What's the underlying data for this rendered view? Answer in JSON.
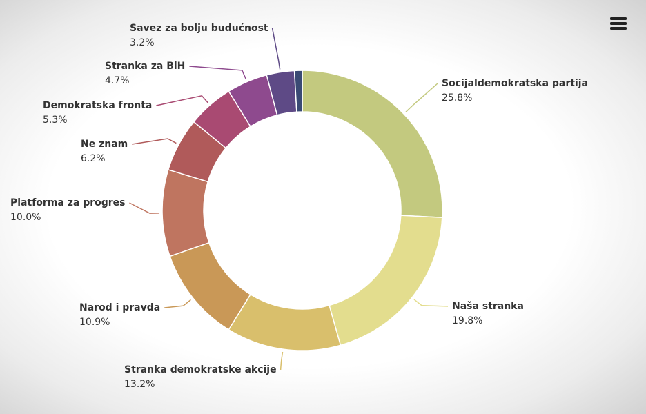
{
  "chart_data": {
    "type": "donut",
    "categories": [
      "Socijaldemokratska partija",
      "Naša stranka",
      "Stranka demokratske akcije",
      "Narod i pravda",
      "Platforma za progres",
      "Ne znam",
      "Demokratska fronta",
      "Stranka za BiH",
      "Savez za bolju budućnost",
      null
    ],
    "values": [
      25.8,
      19.8,
      13.2,
      10.9,
      10.0,
      6.2,
      5.3,
      4.7,
      3.2,
      0.9
    ],
    "value_labels": [
      "25.8%",
      "19.8%",
      "13.2%",
      "10.9%",
      "10.0%",
      "6.2%",
      "5.3%",
      "4.7%",
      "3.2%",
      null
    ],
    "colors": [
      "#c3c97f",
      "#e3dd8e",
      "#d9bf6c",
      "#c99857",
      "#bf7560",
      "#b05a5a",
      "#a94a72",
      "#8e4a8e",
      "#5e4a86",
      "#3a4a74"
    ]
  }
}
